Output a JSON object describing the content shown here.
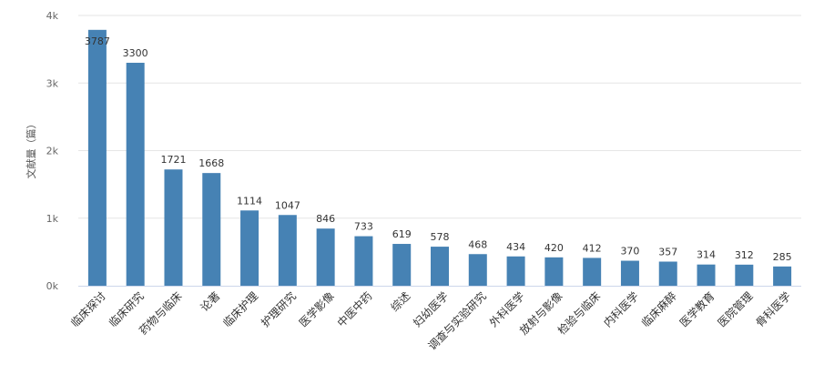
{
  "chart_data": {
    "type": "bar",
    "categories": [
      "临床探讨",
      "临床研究",
      "药物与临床",
      "论著",
      "临床护理",
      "护理研究",
      "医学影像",
      "中医中药",
      "综述",
      "妇幼医学",
      "调查与实验研究",
      "外科医学",
      "放射与影像",
      "检验与临床",
      "内科医学",
      "临床麻醉",
      "医学教育",
      "医院管理",
      "骨科医学"
    ],
    "values": [
      3787,
      3300,
      1721,
      1668,
      1114,
      1047,
      846,
      733,
      619,
      578,
      468,
      434,
      420,
      412,
      370,
      357,
      314,
      312,
      285
    ],
    "data_labels": [
      "3787",
      "3300",
      "1721",
      "1668",
      "1114",
      "1047",
      "846",
      "733",
      "619",
      "578",
      "468",
      "434",
      "420",
      "412",
      "370",
      "357",
      "314",
      "312",
      "285"
    ],
    "title": "",
    "xlabel": "",
    "ylabel": "文献量（篇）",
    "ylim": [
      0,
      4000
    ],
    "yticks": [
      0,
      1000,
      2000,
      3000,
      4000
    ],
    "ytick_labels": [
      "0k",
      "1k",
      "2k",
      "3k",
      "4k"
    ],
    "grid": true,
    "legend": "none",
    "colors": {
      "bar": "#4682b4",
      "grid": "#e6e6e6",
      "axis": "#ccd6eb"
    }
  }
}
